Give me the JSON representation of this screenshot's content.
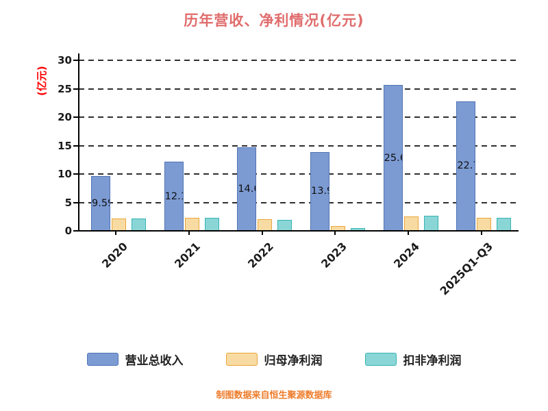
{
  "title": "历年营收、净利情况(亿元)",
  "y_axis_label": "(亿元)",
  "footer": "制图数据来自恒生聚源数据库",
  "colors": {
    "title": "#E06C6C",
    "y_axis_label": "#FF0000",
    "footer": "#EE7C2B",
    "axis_text": "#1A1A1A"
  },
  "chart_data": {
    "type": "bar",
    "title": "历年营收、净利情况(亿元)",
    "xlabel": "",
    "ylabel": "(亿元)",
    "categories": [
      "2020",
      "2021",
      "2022",
      "2023",
      "2024",
      "2025Q1-Q3"
    ],
    "series": [
      {
        "name": "营业总收入",
        "color": "#7C9BD3",
        "border_color": "#5174B3",
        "values": [
          9.59,
          12.14,
          14.69,
          13.91,
          25.65,
          22.78
        ],
        "show_labels": true
      },
      {
        "name": "归母净利润",
        "color": "#F7DBA2",
        "border_color": "#EBA437",
        "values": [
          2.2,
          2.3,
          2.0,
          0.8,
          2.5,
          2.3
        ],
        "show_labels": false
      },
      {
        "name": "扣非净利润",
        "color": "#8AD6D6",
        "border_color": "#35B3B3",
        "values": [
          2.2,
          2.3,
          1.9,
          0.5,
          2.6,
          2.3
        ],
        "show_labels": false
      }
    ],
    "ylim": [
      0,
      30
    ],
    "yticks": [
      0,
      5,
      10,
      15,
      20,
      25,
      30
    ],
    "grid": "dashed-horizontal",
    "legend_position": "bottom"
  }
}
